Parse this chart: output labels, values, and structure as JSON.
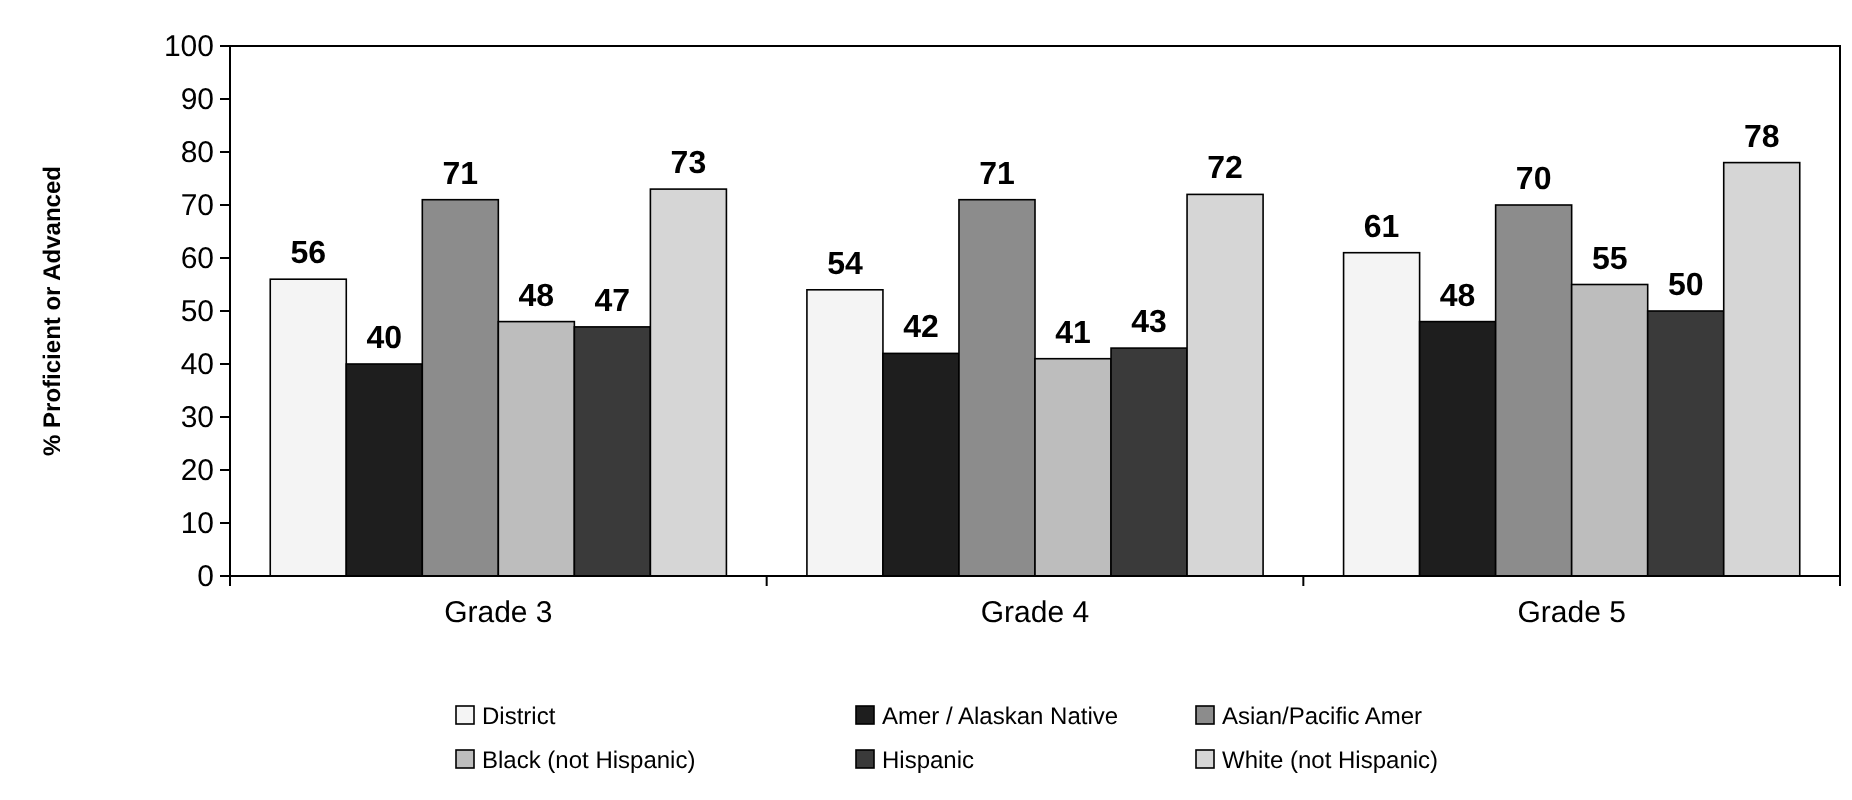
{
  "chart_data": {
    "type": "bar",
    "ylabel": "% Proficient or Advanced",
    "categories": [
      "Grade 3",
      "Grade 4",
      "Grade 5"
    ],
    "series": [
      {
        "name": "District",
        "color": "#f4f4f4",
        "values": [
          56,
          54,
          61
        ]
      },
      {
        "name": "Amer / Alaskan Native",
        "color": "#1e1e1e",
        "values": [
          40,
          42,
          48
        ]
      },
      {
        "name": "Asian/Pacific Amer",
        "color": "#8c8c8c",
        "values": [
          71,
          71,
          70
        ]
      },
      {
        "name": "Black (not Hispanic)",
        "color": "#bdbdbd",
        "values": [
          48,
          41,
          55
        ]
      },
      {
        "name": "Hispanic",
        "color": "#3a3a3a",
        "values": [
          47,
          43,
          50
        ]
      },
      {
        "name": "White (not Hispanic)",
        "color": "#d6d6d6",
        "values": [
          73,
          72,
          78
        ]
      }
    ],
    "ylim": [
      0,
      100
    ],
    "yticks": [
      0,
      10,
      20,
      30,
      40,
      50,
      60,
      70,
      80,
      90,
      100
    ],
    "data_labels": true,
    "legend": "bottom",
    "grid": false
  }
}
